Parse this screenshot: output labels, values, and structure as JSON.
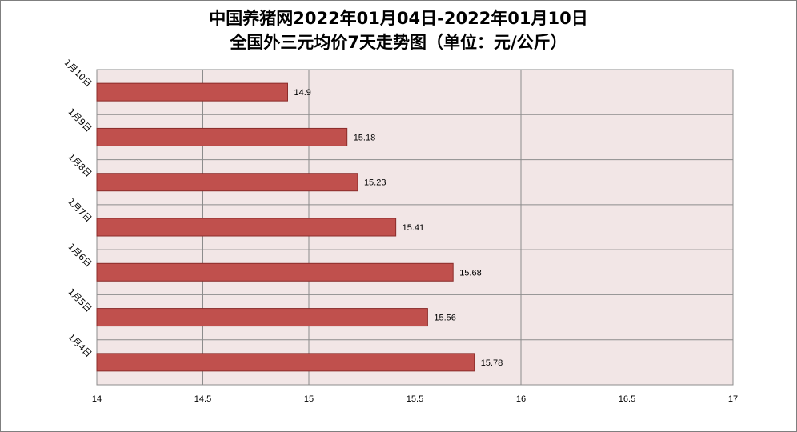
{
  "chart_data": {
    "type": "bar",
    "orientation": "horizontal",
    "title_line1": "中国养猪网2022年01月04日-2022年01月10日",
    "title_line2": "全国外三元均价7天走势图（单位：元/公斤）",
    "categories": [
      "1月10日",
      "1月9日",
      "1月8日",
      "1月7日",
      "1月6日",
      "1月5日",
      "1月4日"
    ],
    "values": [
      14.9,
      15.18,
      15.23,
      15.41,
      15.68,
      15.56,
      15.78
    ],
    "data_labels": [
      "14.9",
      "15.18",
      "15.23",
      "15.41",
      "15.68",
      "15.56",
      "15.78"
    ],
    "x_ticks": [
      "14",
      "14.5",
      "15",
      "15.5",
      "16",
      "16.5",
      "17"
    ],
    "xlim": [
      14,
      17
    ],
    "xlabel": "",
    "ylabel": "",
    "grid": true,
    "legend": "none",
    "bar_color": "#c0504d",
    "bar_edge_color": "#8b2c2a",
    "plot_bg_color": "#f2e6e6"
  }
}
